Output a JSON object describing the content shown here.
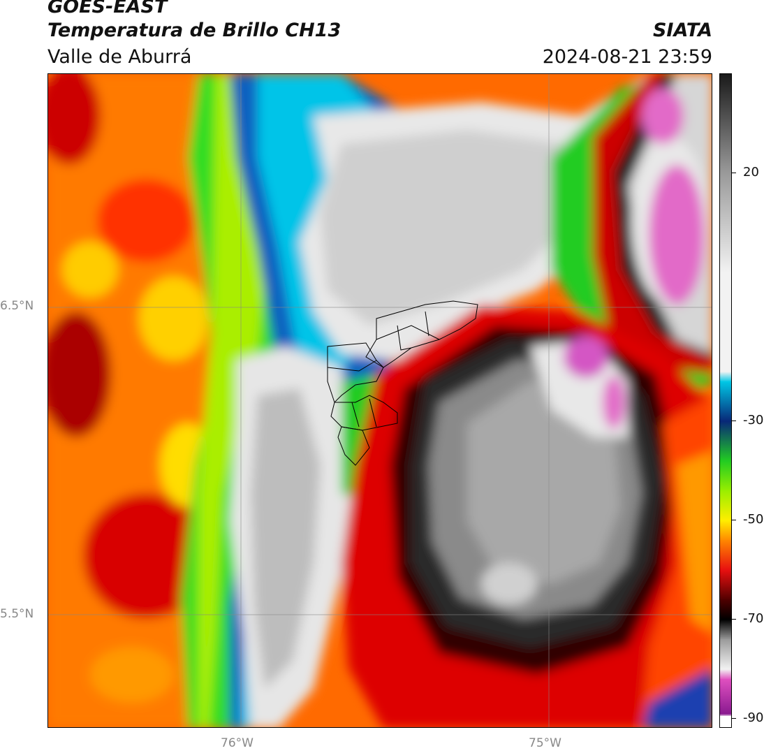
{
  "header": {
    "satellite": "GOES-EAST",
    "product": "Temperatura de Brillo CH13",
    "region": "Valle de Aburrá",
    "organization": "SIATA",
    "datetime": "2024-08-21 23:59"
  },
  "map": {
    "lat_labels": [
      "6.5°N",
      "5.5°N"
    ],
    "lon_labels": [
      "76°W",
      "75°W"
    ],
    "gridlines": true,
    "overlay": "municipality boundaries (Valle de Aburrá)"
  },
  "colorbar": {
    "ticks": [
      "20",
      "-30",
      "-50",
      "-70",
      "-90"
    ],
    "tick_values": [
      20,
      -30,
      -50,
      -70,
      -90
    ],
    "range": [
      -92,
      40
    ],
    "colors": {
      "warm": "#1a1a1a",
      "gray": "#9a9a9a",
      "light": "#f2f2f2",
      "cyan": "#00c8e6",
      "blue": "#1040a0",
      "navy": "#082878",
      "green": "#22cc22",
      "lime": "#99ee00",
      "yellow": "#ffee00",
      "orange": "#ff8800",
      "red": "#e81010",
      "darkred": "#500000",
      "black": "#000000",
      "pink": "#e050c0",
      "purple": "#8a1a90",
      "white": "#ffffff"
    }
  }
}
